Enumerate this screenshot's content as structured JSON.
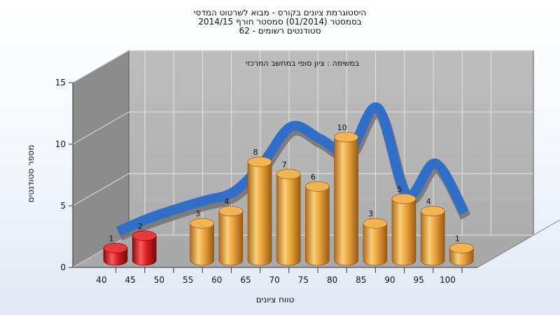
{
  "chart_data": {
    "type": "bar",
    "title_lines": [
      "היסטוגרמת ציונים בקורס - מבוא לשרטוט המדסי",
      "בסמסטר  (01/2014)  סמסטר חורף 2014/15",
      "סטודנטים רשומים - 62"
    ],
    "annotation": "במשימה : ציון סופי במחשב המרכזי",
    "xlabel": "טווח ציונים",
    "ylabel": "מספר סטודנטים",
    "categories": [
      "40",
      "45",
      "50",
      "55",
      "60",
      "65",
      "70",
      "75",
      "80",
      "85",
      "90",
      "95",
      "100"
    ],
    "values": [
      1,
      2,
      null,
      3,
      4,
      8,
      7,
      6,
      10,
      3,
      5,
      4,
      1
    ],
    "failing_categories": [
      "40",
      "45"
    ],
    "ylim": [
      0,
      15
    ],
    "yticks": [
      0,
      5,
      10,
      15
    ],
    "grid": true,
    "trend_line": {
      "type": "smoothed distribution curve",
      "values": [
        1,
        2,
        2.8,
        3.5,
        4.2,
        6.5,
        9.5,
        8.5,
        7.5,
        11,
        4,
        6.5,
        2.5
      ]
    },
    "colors": {
      "failing_bar": "#d42020",
      "passing_bar": "#e8a23c",
      "trend_line": "#2f6fc8",
      "trend_line_shadow": "#6e6e6e",
      "wall": "#b4b4b4",
      "side_wall": "#8c8c8c",
      "floor": "#a9a9a9"
    }
  }
}
